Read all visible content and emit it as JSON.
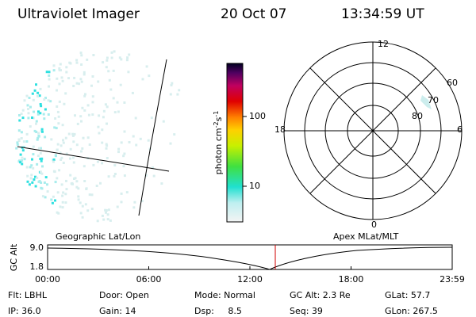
{
  "header": {
    "instrument": "Ultraviolet Imager",
    "date": "20 Oct 07",
    "time": "13:34:59 UT"
  },
  "colorbar": {
    "label": "photon cm",
    "exp1": "-2",
    "unit2": "s",
    "exp2": "-1",
    "ticks": [
      "100",
      "10"
    ]
  },
  "polar": {
    "mlt_labels": [
      "12",
      "18",
      "6",
      "0"
    ],
    "lat_labels": [
      "60",
      "70",
      "80"
    ]
  },
  "timeline": {
    "left_label": "Geographic Lat/Lon",
    "right_label": "Apex MLat/MLT",
    "y_label": "GC Alt",
    "y_ticks": [
      "9.0",
      "1.8"
    ],
    "x_ticks": [
      "00:00",
      "06:00",
      "12:00",
      "18:00",
      "23:59"
    ]
  },
  "info": {
    "rows": [
      [
        "Flt: LBHL",
        "Door: Open",
        "Mode: Normal",
        "GC Alt: 2.3 Re",
        "GLat: 57.7"
      ],
      [
        "IP: 36.0",
        "Gain: 14",
        "Dsp:     8.5",
        "Seq: 39",
        "GLon: 267.5"
      ]
    ]
  }
}
